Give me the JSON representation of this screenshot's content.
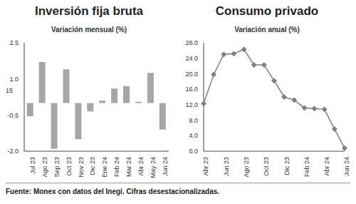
{
  "chart_data": [
    {
      "type": "bar",
      "title": "Inversión fija bruta",
      "subtitle": "Variación mensual (%)",
      "categories": [
        "Jul 23",
        "Ago 23",
        "Sep 23",
        "Oct 23",
        "Nov 23",
        "Dic 23",
        "Ene 24",
        "Feb 24",
        "Mar 24",
        "Abr 24",
        "May 24",
        "Jun 24"
      ],
      "values": [
        -0.55,
        1.7,
        -1.9,
        1.4,
        -1.5,
        -0.35,
        0.1,
        0.6,
        0.7,
        0.05,
        1.25,
        -1.1
      ],
      "color": "#a6a6a6",
      "ylim": [
        -2.0,
        2.5
      ],
      "yticks": [
        2.5,
        {
          "value": 1,
          "label": "1.0"
        },
        -0.5,
        {
          "value": -2,
          "label": "-2.0"
        }
      ],
      "grid": false,
      "annotations": [
        "15"
      ]
    },
    {
      "type": "line",
      "title": "Consumo privado",
      "subtitle": "Variación anual (%)",
      "categories": [
        "Abr 23",
        null,
        "Jun 23",
        null,
        "Ago 23",
        null,
        "Oct 23",
        null,
        "Dic 23",
        null,
        "Feb 24",
        null,
        "Abr 24",
        null,
        "Jun 24"
      ],
      "values": [
        12.3,
        19.8,
        25.0,
        25.2,
        26.3,
        22.3,
        22.3,
        18.2,
        14.0,
        13.2,
        11.2,
        11.0,
        10.8,
        5.7,
        0.8
      ],
      "color": "#808080",
      "marker": "diamond",
      "line_style": "solid",
      "ylim": [
        0,
        28
      ],
      "yticks": [
        {
          "value": 0,
          "label": "0.0"
        },
        {
          "value": 4,
          "label": "4.0"
        },
        {
          "value": 8,
          "label": "8.0"
        },
        {
          "value": 12,
          "label": "12.0"
        },
        {
          "value": 16,
          "label": "16.0"
        },
        {
          "value": 20,
          "label": "20.0"
        },
        {
          "value": 24,
          "label": "24.0"
        },
        {
          "value": 28,
          "label": "28.0"
        }
      ],
      "grid": false
    }
  ],
  "source": "Fuente: Monex con datos del Inegi. Cifras desestacionalizadas."
}
